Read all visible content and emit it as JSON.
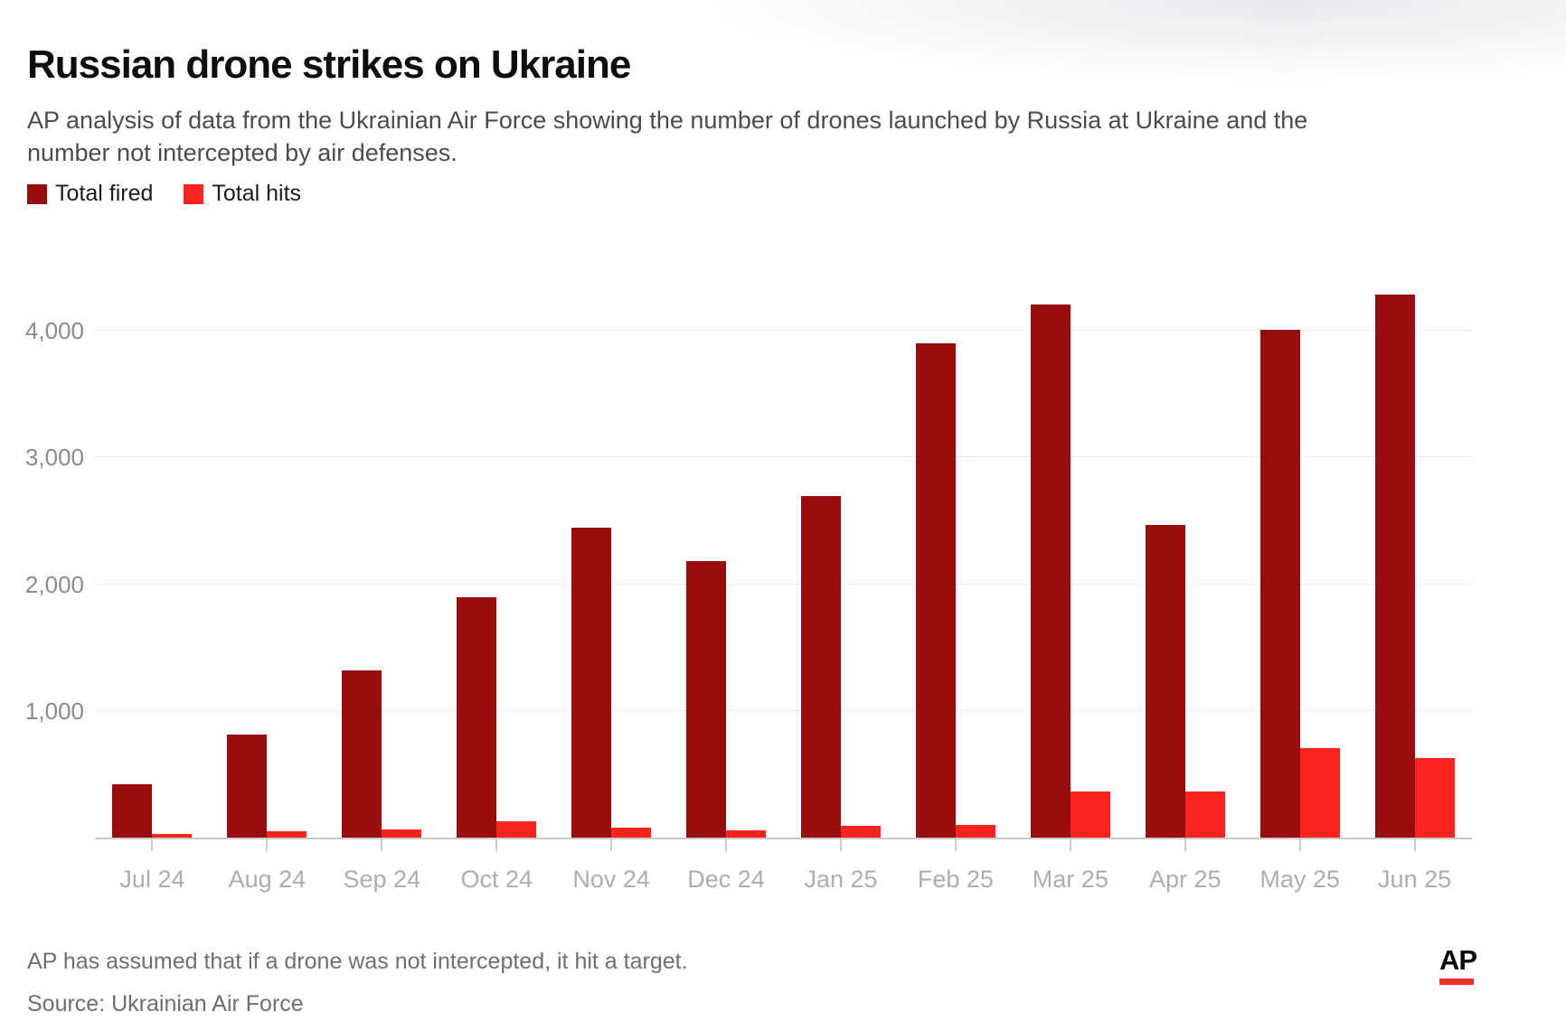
{
  "header": {
    "title": "Russian drone strikes on Ukraine",
    "subtitle": "AP analysis of data from the Ukrainian Air Force showing the number of drones launched by Russia at Ukraine and the number not intercepted by air defenses."
  },
  "legend": [
    {
      "label": "Total fired",
      "color": "#9a0d0f"
    },
    {
      "label": "Total hits",
      "color": "#fa2320"
    }
  ],
  "chart_data": {
    "type": "bar",
    "title": "Russian drone strikes on Ukraine",
    "categories": [
      "Jul 24",
      "Aug 24",
      "Sep 24",
      "Oct 24",
      "Nov 24",
      "Dec 24",
      "Jan 25",
      "Feb 25",
      "Mar 25",
      "Apr 25",
      "May 25",
      "Jun 25"
    ],
    "series": [
      {
        "name": "Total fired",
        "color": "#9a0d0f",
        "values": [
          420,
          810,
          1320,
          1900,
          2445,
          2180,
          2700,
          3905,
          4210,
          2470,
          4010,
          4285
        ]
      },
      {
        "name": "Total hits",
        "color": "#fa2320",
        "values": [
          30,
          50,
          65,
          130,
          80,
          55,
          95,
          100,
          365,
          365,
          705,
          625
        ]
      }
    ],
    "xlabel": "",
    "ylabel": "",
    "ylim": [
      0,
      4600
    ],
    "yticks": [
      1000,
      2000,
      3000,
      4000
    ],
    "ytick_labels": [
      "1,000",
      "2,000",
      "3,000",
      "4,000"
    ],
    "grid": true,
    "legend_position": "top-left"
  },
  "footer": {
    "note": "AP has assumed that if a drone was not intercepted, it hit a target.",
    "source": "Source: Ukrainian Air Force",
    "logo_text": "AP",
    "logo_accent_color": "#ee3124"
  },
  "style_colors": {
    "axis_line": "#c9c9c9",
    "gridline": "#ebebeb",
    "y_tick_label": "#8c8c8c",
    "x_tick_label": "#aeaeae",
    "title_text": "#0e0e0e",
    "subtitle_text": "#4c4c4c",
    "footnote_text": "#6f6f6f"
  }
}
